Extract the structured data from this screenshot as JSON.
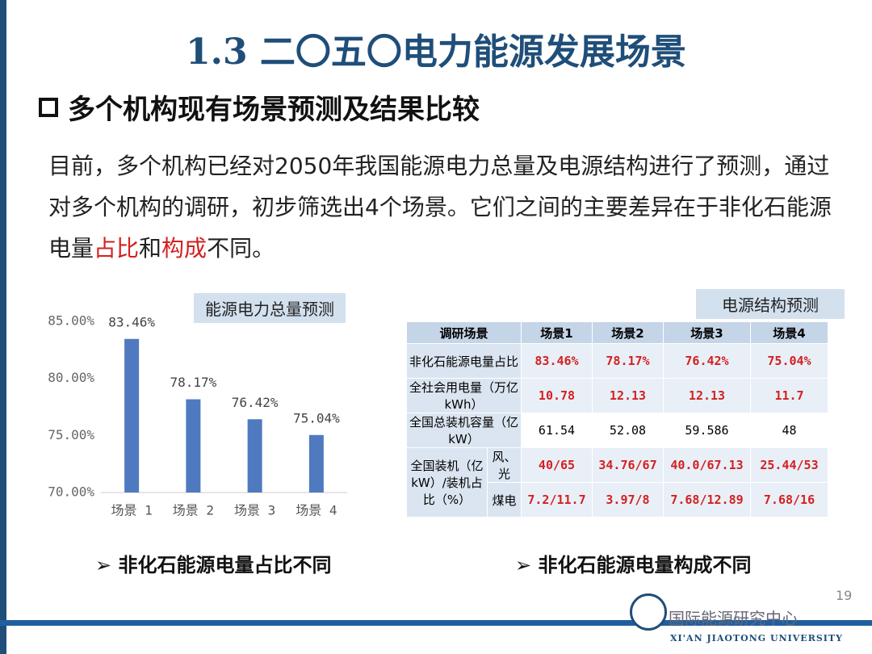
{
  "header": {
    "title": "1.3 二〇五〇电力能源发展场景",
    "subtitle": "多个机构现有场景预测及结果比较"
  },
  "intro": {
    "parts": [
      "目前，多个机构已经对2050年我国能源电力总量及电源结构进行了预测，通过对多个机构的调研，初步筛选出4个场景。它们之间的主要差异在于非化石能源电量",
      "占比",
      "和",
      "构成",
      "不同。"
    ]
  },
  "chart_data": {
    "type": "bar",
    "title": "能源电力总量预测",
    "categories": [
      "场景 1",
      "场景 2",
      "场景 3",
      "场景 4"
    ],
    "values": [
      83.46,
      78.17,
      76.42,
      75.04
    ],
    "value_labels": [
      "83.46%",
      "78.17%",
      "76.42%",
      "75.04%"
    ],
    "color": "#4f7ac0",
    "ylim": [
      70,
      85
    ],
    "yticks": [
      {
        "value": 70,
        "label": "70.00%"
      },
      {
        "value": 75,
        "label": "75.00%"
      },
      {
        "value": 80,
        "label": "80.00%"
      },
      {
        "value": 85,
        "label": "85.00%"
      }
    ],
    "grid": false
  },
  "table": {
    "title": "电源结构预测",
    "header": [
      "调研场景",
      "场景1",
      "场景2",
      "场景3",
      "场景4"
    ],
    "rows": [
      {
        "label": "非化石能源电量占比",
        "values": [
          "83.46%",
          "78.17%",
          "76.42%",
          "75.04%"
        ]
      },
      {
        "label": "全社会用电量（万亿kWh）",
        "values": [
          "10.78",
          "12.13",
          "12.13",
          "11.7"
        ]
      },
      {
        "label": "全国总装机容量（亿kW）",
        "values": [
          "61.54",
          "52.08",
          "59.586",
          "48"
        ]
      }
    ],
    "group": {
      "label": "全国装机（亿kW）/装机占比（%）",
      "rows": [
        {
          "label": "风、光",
          "values": [
            "40/65",
            "34.76/67",
            "40.0/67.13",
            "25.44/53"
          ]
        },
        {
          "label": "煤电",
          "values": [
            "7.2/11.7",
            "3.97/8",
            "7.68/12.89",
            "7.68/16"
          ]
        }
      ]
    }
  },
  "bullets": [
    "非化石能源电量占比不同",
    "非化石能源电量构成不同"
  ],
  "footer": {
    "page": "19",
    "university": "XI'AN JIAOTONG UNIVERSITY",
    "watermark": "国际能源研究中心"
  }
}
